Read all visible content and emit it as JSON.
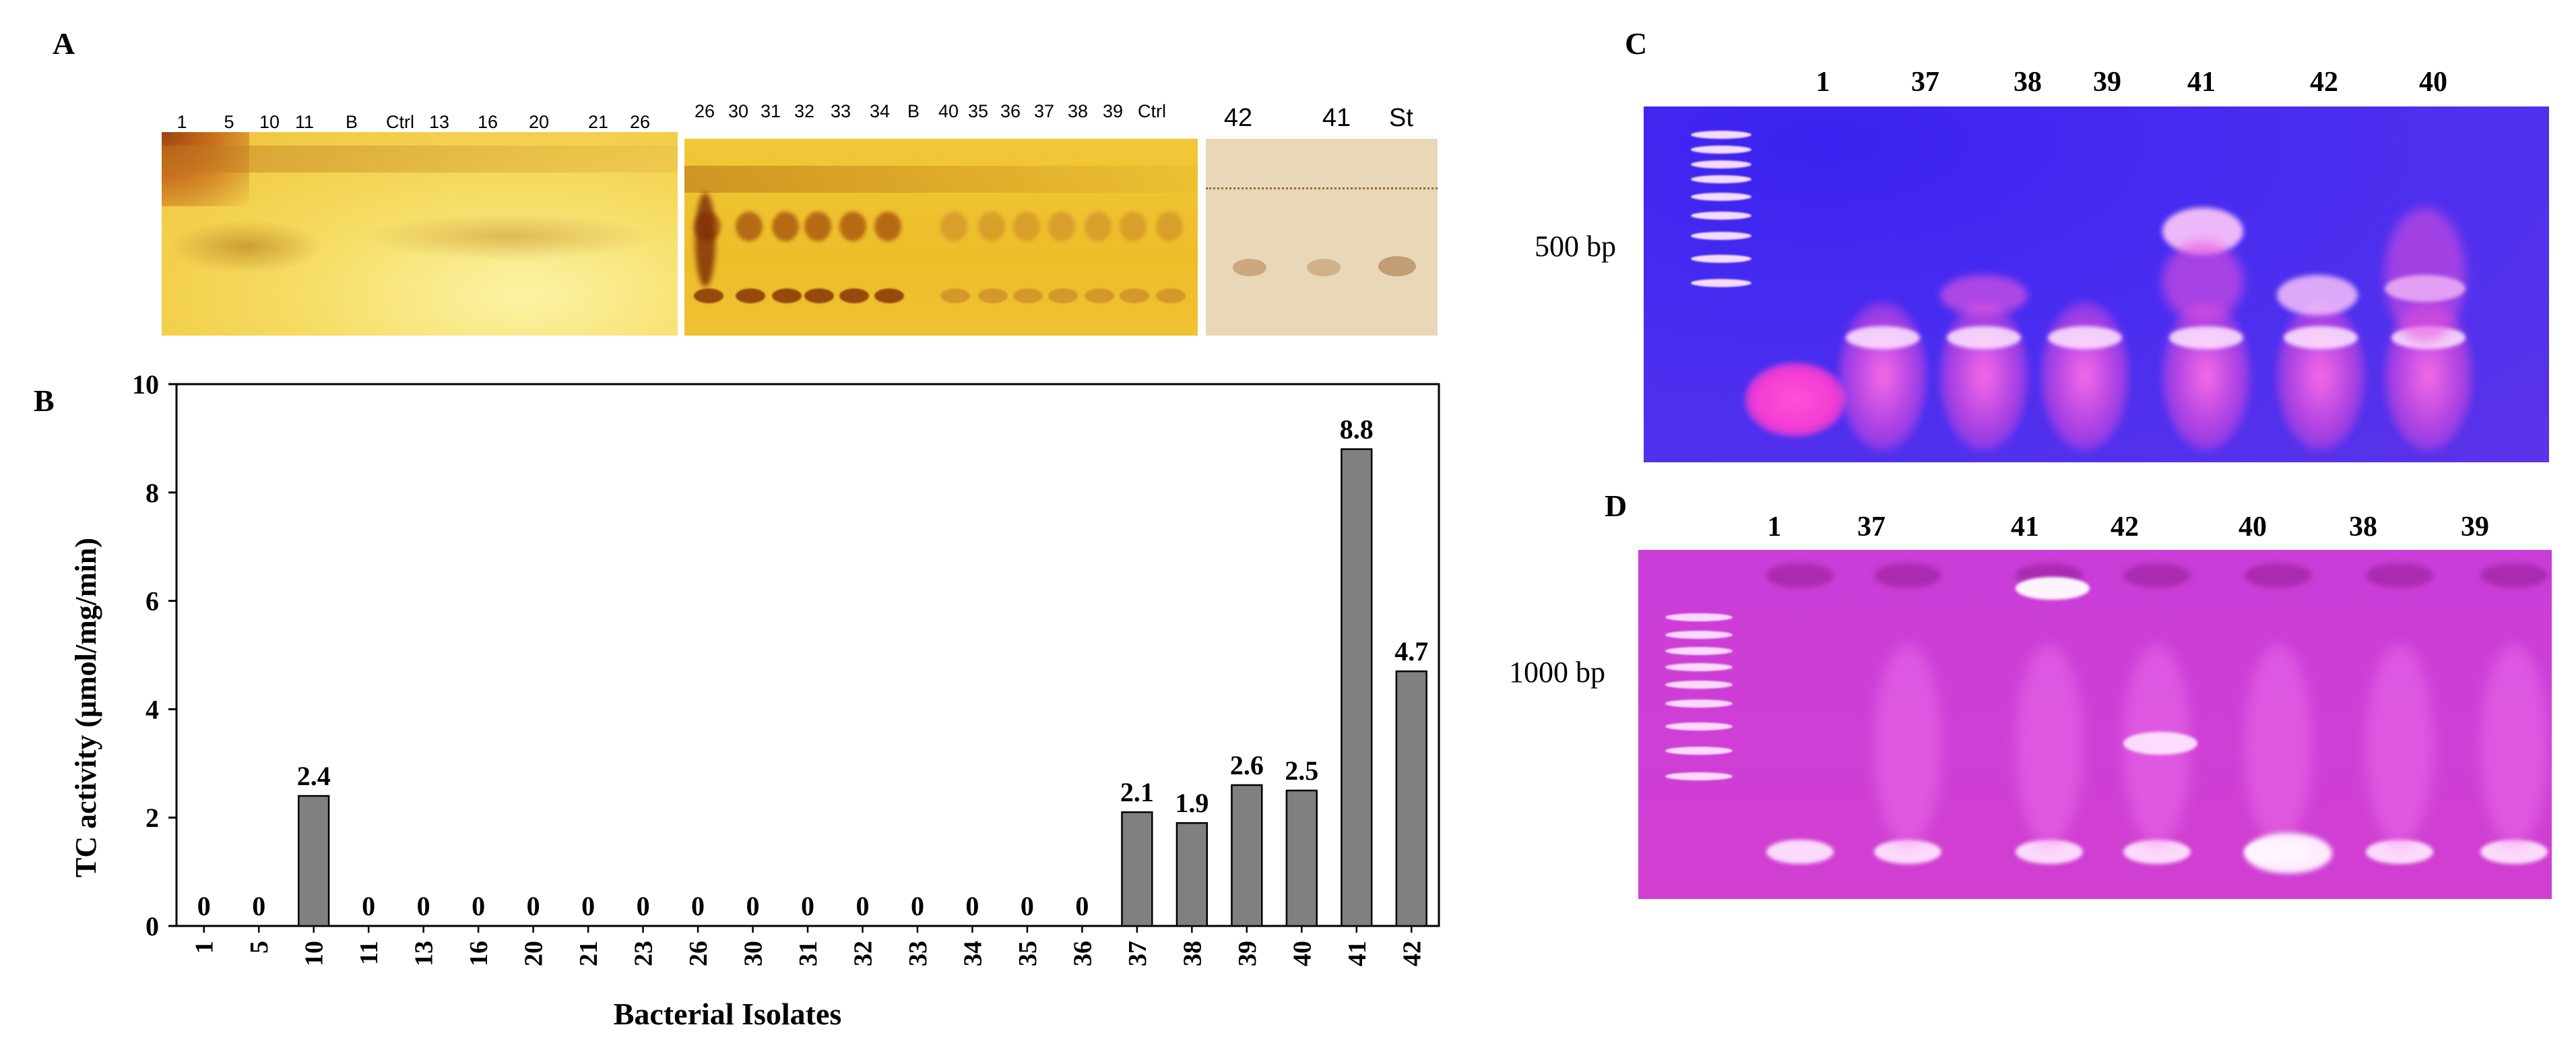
{
  "panels": {
    "A": {
      "letter": "A",
      "gel1_lanes": [
        "1",
        "5",
        "10",
        "11",
        "B",
        "Ctrl",
        "13",
        "16",
        "20",
        "21",
        "26"
      ],
      "gel2_lanes": [
        "26",
        "30",
        "31",
        "32",
        "33",
        "34",
        "B",
        "40",
        "35",
        "36",
        "37",
        "38",
        "39",
        "Ctrl"
      ],
      "gel3_lanes": [
        "42",
        "41",
        "St"
      ]
    },
    "B": {
      "letter": "B"
    },
    "C": {
      "letter": "C",
      "lanes": [
        "1",
        "37",
        "38",
        "39",
        "41",
        "42",
        "40"
      ],
      "marker_label": "500 bp"
    },
    "D": {
      "letter": "D",
      "lanes": [
        "1",
        "37",
        "41",
        "42",
        "40",
        "38",
        "39"
      ],
      "marker_label": "1000 bp"
    }
  },
  "colors": {
    "bar_fill": "#808080",
    "gel_a": "#f3d24c",
    "gel_c": "#4a2cf0",
    "gel_d": "#cf3ad6"
  },
  "chart_data": {
    "type": "bar",
    "categories": [
      "1",
      "5",
      "10",
      "11",
      "13",
      "16",
      "20",
      "21",
      "23",
      "26",
      "30",
      "31",
      "32",
      "33",
      "34",
      "35",
      "36",
      "37",
      "38",
      "39",
      "40",
      "41",
      "42"
    ],
    "values": [
      0,
      0,
      2.4,
      0,
      0,
      0,
      0,
      0,
      0,
      0,
      0,
      0,
      0,
      0,
      0,
      0,
      0,
      2.1,
      1.9,
      2.6,
      2.5,
      8.8,
      4.7
    ],
    "value_labels": [
      "0",
      "0",
      "2.4",
      "0",
      "0",
      "0",
      "0",
      "0",
      "0",
      "0",
      "0",
      "0",
      "0",
      "0",
      "0",
      "0",
      "0",
      "2.1",
      "1.9",
      "2.6",
      "2.5",
      "8.8",
      "4.7"
    ],
    "xlabel": "Bacterial Isolates",
    "ylabel": "TC activity (μmol/mg/min)",
    "ylim": [
      0,
      10
    ],
    "yticks": [
      0,
      2,
      4,
      6,
      8,
      10
    ],
    "grid": false
  }
}
